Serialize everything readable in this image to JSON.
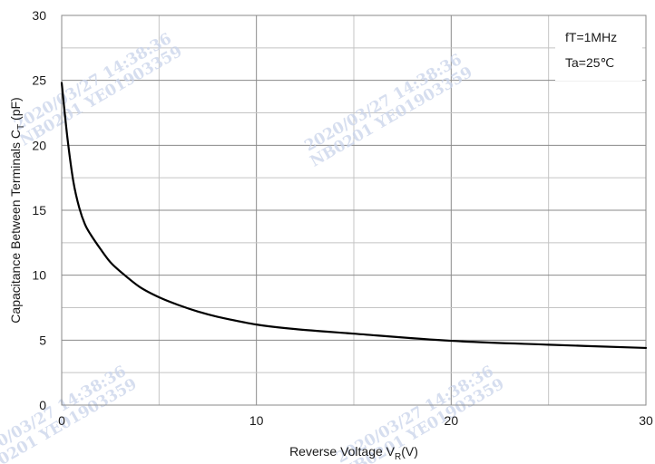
{
  "chart_data": {
    "type": "line",
    "xlabel": "Reverse Voltage V",
    "xlabel_sub": "R",
    "xlabel_unit": "(V)",
    "ylabel": "Capacitance Between Terminals C",
    "ylabel_sub": "T",
    "ylabel_unit": " (pF)",
    "xlim": [
      0,
      30
    ],
    "ylim": [
      0,
      30
    ],
    "xticks": [
      "0",
      "10",
      "20",
      "30"
    ],
    "yticks": [
      "0",
      "5",
      "10",
      "15",
      "20",
      "25",
      "30"
    ],
    "grid": true,
    "annotations": [
      "fT=1MHz",
      "Ta=25℃"
    ],
    "series": [
      {
        "color": "#000000",
        "x": [
          0,
          0.3,
          0.6,
          0.9,
          1.2,
          1.5,
          2,
          2.5,
          3,
          4,
          5,
          6,
          7,
          8,
          10,
          12,
          15,
          20,
          25,
          30
        ],
        "y": [
          24.8,
          20.5,
          17.2,
          15.2,
          13.9,
          13.1,
          12.0,
          11.0,
          10.3,
          9.1,
          8.3,
          7.7,
          7.2,
          6.8,
          6.2,
          5.85,
          5.5,
          4.95,
          4.65,
          4.4
        ]
      }
    ]
  },
  "watermarks": [
    "2020/03/27 14:38:36",
    "NB0201 YE01903359"
  ]
}
